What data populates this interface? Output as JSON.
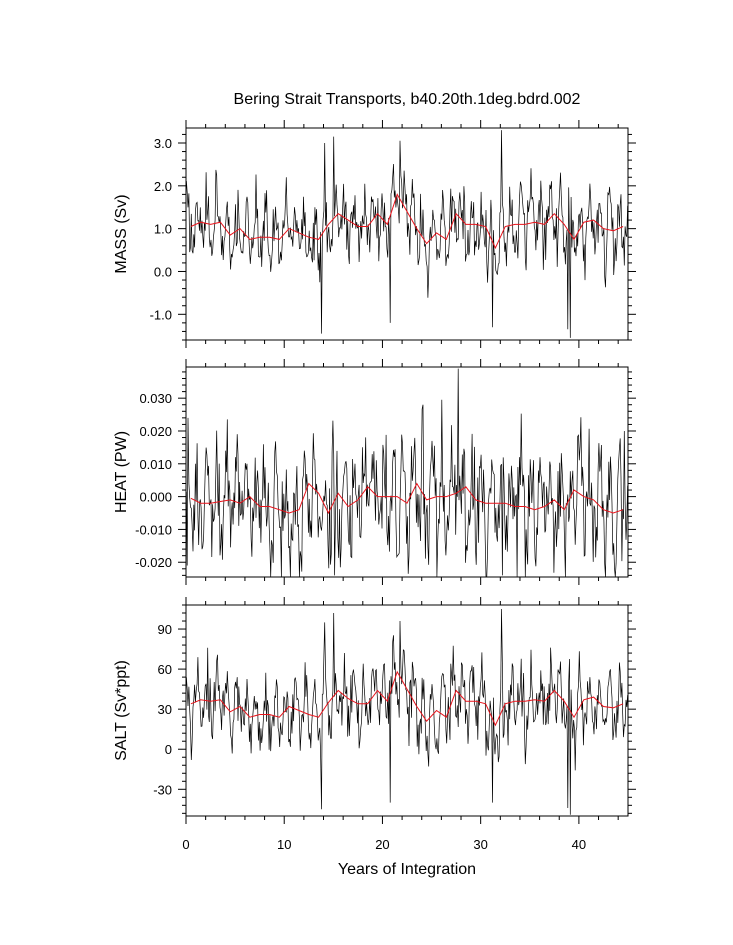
{
  "title": "Bering Strait Transports, b40.20th.1deg.bdrd.002",
  "xlabel": "Years of Integration",
  "colors": {
    "monthly": "#000000",
    "annual": "#e8121a"
  },
  "chart_data": [
    {
      "type": "line",
      "ylabel": "MASS (Sv)",
      "xlim": [
        0,
        45
      ],
      "ylim": [
        -1.6,
        3.35
      ],
      "x_ticks": [
        "0",
        "10",
        "20",
        "30",
        "40"
      ],
      "x_tick_values": [
        0,
        10,
        20,
        30,
        40
      ],
      "y_ticks": [
        "3.0",
        "2.0",
        "1.0",
        "0.0",
        "-1.0"
      ],
      "y_tick_values": [
        3.0,
        2.0,
        1.0,
        0.0,
        -1.0
      ],
      "series": [
        {
          "style": "monthly",
          "noise_scale": 0.75,
          "clip": [
            -1.55,
            3.25
          ],
          "spikes": [
            [
              15.05,
              3.15
            ],
            [
              32.1,
              3.3
            ],
            [
              21.75,
              3.05
            ],
            [
              14.1,
              3.0
            ],
            [
              13.8,
              -1.45
            ],
            [
              39.1,
              -1.55
            ],
            [
              38.9,
              -1.35
            ],
            [
              20.8,
              -1.2
            ],
            [
              31.2,
              -1.3
            ]
          ]
        },
        {
          "style": "annual",
          "x": [
            0.5,
            1.5,
            2.5,
            3.5,
            4.5,
            5.5,
            6.5,
            7.5,
            8.5,
            9.5,
            10.5,
            11.5,
            12.5,
            13.5,
            14.5,
            15.5,
            16.5,
            17.5,
            18.5,
            19.5,
            20.5,
            21.5,
            22.5,
            23.5,
            24.5,
            25.5,
            26.5,
            27.5,
            28.5,
            29.5,
            30.5,
            31.5,
            32.5,
            33.5,
            34.5,
            35.5,
            36.5,
            37.5,
            38.5,
            39.5,
            40.5,
            41.5,
            42.5,
            43.5,
            44.5
          ],
          "values": [
            1.05,
            1.15,
            1.1,
            1.15,
            0.85,
            1.0,
            0.75,
            0.8,
            0.8,
            0.75,
            1.0,
            0.9,
            0.8,
            0.75,
            1.1,
            1.35,
            1.2,
            1.05,
            1.05,
            1.35,
            1.1,
            1.8,
            1.4,
            1.0,
            0.65,
            0.9,
            0.75,
            1.35,
            1.1,
            1.1,
            1.05,
            0.55,
            1.05,
            1.1,
            1.1,
            1.15,
            1.1,
            1.35,
            1.1,
            0.75,
            1.15,
            1.2,
            1.0,
            0.95,
            1.05
          ]
        }
      ]
    },
    {
      "type": "line",
      "ylabel": "HEAT (PW)",
      "xlim": [
        0,
        45
      ],
      "ylim": [
        -0.0245,
        0.0395
      ],
      "x_ticks": [
        "0",
        "10",
        "20",
        "30",
        "40"
      ],
      "x_tick_values": [
        0,
        10,
        20,
        30,
        40
      ],
      "y_ticks": [
        "0.030",
        "0.020",
        "0.010",
        "0.000",
        "-0.010",
        "-0.020"
      ],
      "y_tick_values": [
        0.03,
        0.02,
        0.01,
        0.0,
        -0.01,
        -0.02
      ],
      "series": [
        {
          "style": "monthly",
          "noise_scale": 0.016,
          "clip": [
            -0.0245,
            0.039
          ],
          "spikes": [
            [
              27.7,
              0.039
            ],
            [
              32.2,
              -0.024
            ],
            [
              15.1,
              -0.024
            ],
            [
              0.2,
              0.024
            ],
            [
              0.1,
              -0.021
            ],
            [
              44.6,
              0.02
            ]
          ]
        },
        {
          "style": "annual",
          "x": [
            0.5,
            1.5,
            2.5,
            3.5,
            4.5,
            5.5,
            6.5,
            7.5,
            8.5,
            9.5,
            10.5,
            11.5,
            12.5,
            13.5,
            14.5,
            15.5,
            16.5,
            17.5,
            18.5,
            19.5,
            20.5,
            21.5,
            22.5,
            23.5,
            24.5,
            25.5,
            26.5,
            27.5,
            28.5,
            29.5,
            30.5,
            31.5,
            32.5,
            33.5,
            34.5,
            35.5,
            36.5,
            37.5,
            38.5,
            39.5,
            40.5,
            41.5,
            42.5,
            43.5,
            44.5
          ],
          "values": [
            -0.0005,
            -0.002,
            -0.002,
            -0.0015,
            -0.001,
            -0.002,
            0.0,
            -0.003,
            -0.003,
            -0.004,
            -0.005,
            -0.004,
            0.004,
            0.001,
            -0.005,
            0.001,
            -0.003,
            -0.001,
            0.003,
            0.0,
            0.0,
            0.0,
            -0.002,
            0.004,
            -0.001,
            0.0,
            0.0,
            0.001,
            0.003,
            -0.001,
            -0.002,
            -0.002,
            -0.002,
            -0.003,
            -0.003,
            -0.004,
            -0.003,
            -0.001,
            -0.004,
            0.002,
            0.0,
            -0.001,
            -0.004,
            -0.005,
            -0.004
          ]
        }
      ]
    },
    {
      "type": "line",
      "ylabel": "SALT (Sv*ppt)",
      "xlim": [
        0,
        45
      ],
      "ylim": [
        -50,
        108
      ],
      "x_ticks": [
        "0",
        "10",
        "20",
        "30",
        "40"
      ],
      "x_tick_values": [
        0,
        10,
        20,
        30,
        40
      ],
      "y_ticks": [
        "90",
        "60",
        "30",
        "0",
        "-30"
      ],
      "y_tick_values": [
        90,
        60,
        30,
        0,
        -30
      ],
      "series": [
        {
          "style": "monthly",
          "noise_scale": 24,
          "clip": [
            -49,
            105
          ],
          "spikes": [
            [
              15.05,
              102
            ],
            [
              32.1,
              105
            ],
            [
              21.75,
              96
            ],
            [
              14.1,
              95
            ],
            [
              13.8,
              -45
            ],
            [
              39.1,
              -49
            ],
            [
              38.9,
              -44
            ],
            [
              20.8,
              -40
            ],
            [
              31.2,
              -40
            ]
          ]
        },
        {
          "style": "annual",
          "x": [
            0.5,
            1.5,
            2.5,
            3.5,
            4.5,
            5.5,
            6.5,
            7.5,
            8.5,
            9.5,
            10.5,
            11.5,
            12.5,
            13.5,
            14.5,
            15.5,
            16.5,
            17.5,
            18.5,
            19.5,
            20.5,
            21.5,
            22.5,
            23.5,
            24.5,
            25.5,
            26.5,
            27.5,
            28.5,
            29.5,
            30.5,
            31.5,
            32.5,
            33.5,
            34.5,
            35.5,
            36.5,
            37.5,
            38.5,
            39.5,
            40.5,
            41.5,
            42.5,
            43.5,
            44.5
          ],
          "values": [
            34,
            37,
            36,
            37,
            28,
            32,
            24,
            26,
            26,
            24,
            32,
            29,
            26,
            24,
            35,
            44,
            38,
            34,
            34,
            44,
            36,
            58,
            45,
            32,
            21,
            29,
            24,
            44,
            36,
            36,
            34,
            18,
            34,
            36,
            36,
            37,
            36,
            44,
            36,
            24,
            37,
            39,
            32,
            31,
            34
          ]
        }
      ]
    }
  ]
}
